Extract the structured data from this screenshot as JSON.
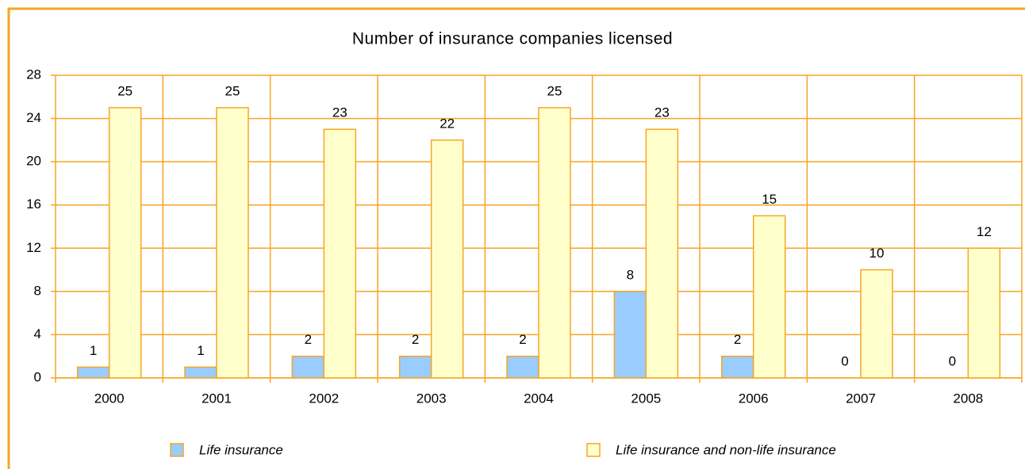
{
  "chart_data": {
    "type": "bar",
    "title": "Number of insurance companies licensed",
    "categories": [
      "2000",
      "2001",
      "2002",
      "2003",
      "2004",
      "2005",
      "2006",
      "2007",
      "2008"
    ],
    "series": [
      {
        "name": "Life insurance",
        "color": "#99ccff",
        "values": [
          1,
          1,
          2,
          2,
          2,
          8,
          2,
          0,
          0
        ]
      },
      {
        "name": "Life insurance and non-life insurance",
        "color": "#ffffcc",
        "values": [
          25,
          25,
          23,
          22,
          25,
          23,
          15,
          10,
          12
        ]
      }
    ],
    "ylim": [
      0,
      28
    ],
    "yticks": [
      0,
      4,
      8,
      12,
      16,
      20,
      24,
      28
    ],
    "grid": true,
    "legend": "bottom"
  }
}
